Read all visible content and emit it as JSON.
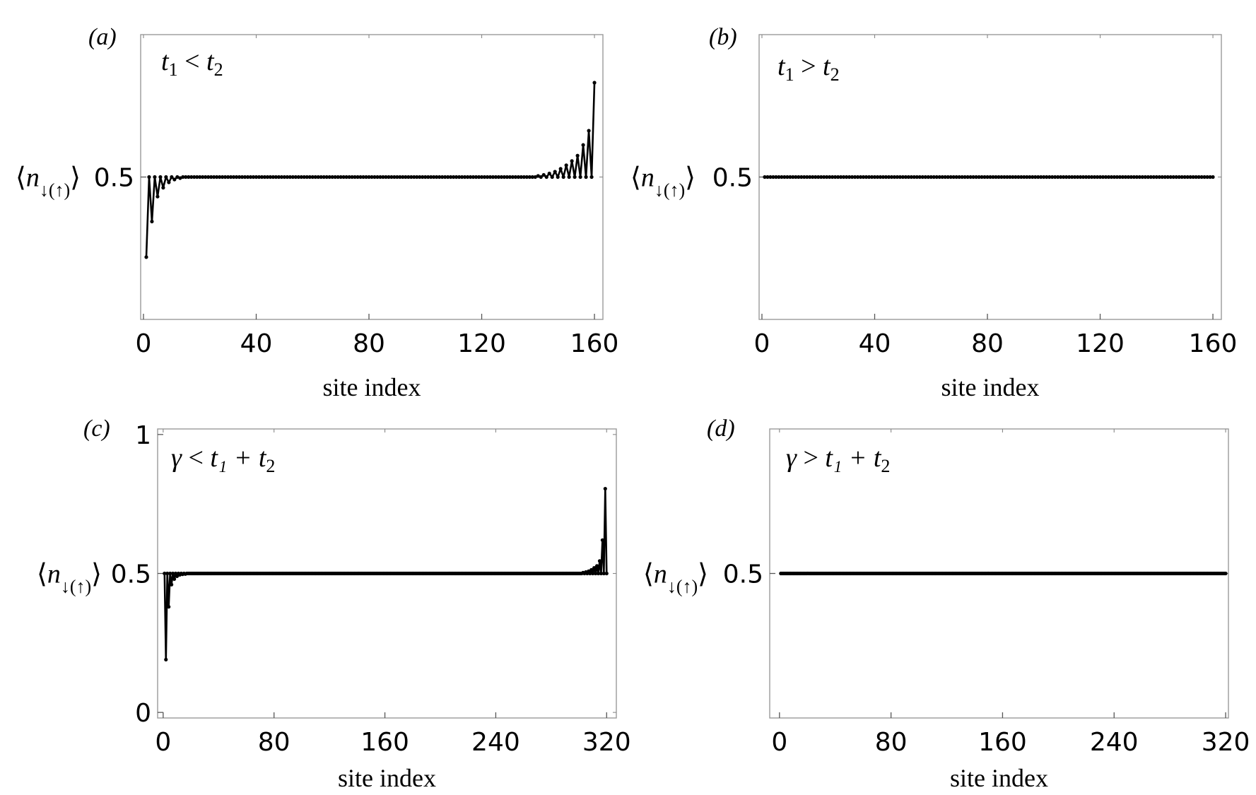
{
  "chart_data": [
    {
      "panel": "a",
      "type": "line",
      "tag": "(a)",
      "condition": {
        "lhs": "t",
        "lhs_sub": "1",
        "op": "<",
        "rhs": "t",
        "rhs_sub": "2"
      },
      "ylabel": {
        "base": "n",
        "sub": "↓(↑)"
      },
      "xlabel": "site index",
      "xlim": [
        -1,
        163
      ],
      "ylim": [
        0.1,
        0.9
      ],
      "xticks": [
        0,
        40,
        80,
        120,
        160
      ],
      "yticks": [
        0.5
      ],
      "x_start": 1,
      "x_end": 160,
      "baseline": 0.5,
      "left_edge": [
        0.275,
        0.5,
        0.375,
        0.5,
        0.445,
        0.5,
        0.47,
        0.5,
        0.485,
        0.5,
        0.493,
        0.5,
        0.497,
        0.5
      ],
      "right_edge": [
        0.5,
        0.503,
        0.5,
        0.506,
        0.5,
        0.51,
        0.5,
        0.515,
        0.5,
        0.523,
        0.5,
        0.533,
        0.5,
        0.545,
        0.5,
        0.56,
        0.5,
        0.59,
        0.5,
        0.63,
        0.5,
        0.765
      ],
      "markers": true
    },
    {
      "panel": "b",
      "type": "line",
      "tag": "(b)",
      "condition": {
        "lhs": "t",
        "lhs_sub": "1",
        "op": ">",
        "rhs": "t",
        "rhs_sub": "2"
      },
      "ylabel": {
        "base": "n",
        "sub": "↓(↑)"
      },
      "xlabel": "site index",
      "xlim": [
        -1,
        163
      ],
      "ylim": [
        0.1,
        0.9
      ],
      "xticks": [
        0,
        40,
        80,
        120,
        160
      ],
      "yticks": [
        0.5
      ],
      "x_start": 1,
      "x_end": 160,
      "baseline": 0.5,
      "left_edge": [],
      "right_edge": [],
      "markers": true
    },
    {
      "panel": "c",
      "type": "line",
      "tag": "(c)",
      "condition": {
        "lhs": "γ",
        "lhs_sub": "",
        "op": "<",
        "rhs": "t₁ + t",
        "rhs_sub": "2"
      },
      "ylabel": {
        "base": "n",
        "sub": "↓(↑)"
      },
      "xlabel": "site index",
      "xlim": [
        -4,
        327
      ],
      "ylim": [
        -0.02,
        1.02
      ],
      "xticks": [
        0,
        80,
        160,
        240,
        320
      ],
      "yticks": [
        0,
        0.5,
        1
      ],
      "x_start": 1,
      "x_end": 320,
      "baseline": 0.5,
      "left_edge": [
        0.5,
        0.19,
        0.5,
        0.38,
        0.5,
        0.46,
        0.5,
        0.48,
        0.5,
        0.49,
        0.5,
        0.495,
        0.5,
        0.497,
        0.5,
        0.498
      ],
      "right_edge": [
        0.5,
        0.503,
        0.5,
        0.505,
        0.5,
        0.508,
        0.5,
        0.513,
        0.5,
        0.52,
        0.5,
        0.527,
        0.5,
        0.545,
        0.5,
        0.62,
        0.5,
        0.805,
        0.5
      ],
      "markers": true
    },
    {
      "panel": "d",
      "type": "line",
      "tag": "(d)",
      "condition": {
        "lhs": "γ",
        "lhs_sub": "",
        "op": ">",
        "rhs": "t₁ + t",
        "rhs_sub": "2"
      },
      "ylabel": {
        "base": "n",
        "sub": "↓(↑)"
      },
      "xlabel": "site index",
      "xlim": [
        -7,
        322
      ],
      "ylim": [
        0.0,
        1.0
      ],
      "xticks": [
        0,
        80,
        160,
        240,
        320
      ],
      "yticks": [
        0.5
      ],
      "x_start": 1,
      "x_end": 320,
      "baseline": 0.5,
      "left_edge": [],
      "right_edge": [],
      "markers": true
    }
  ]
}
